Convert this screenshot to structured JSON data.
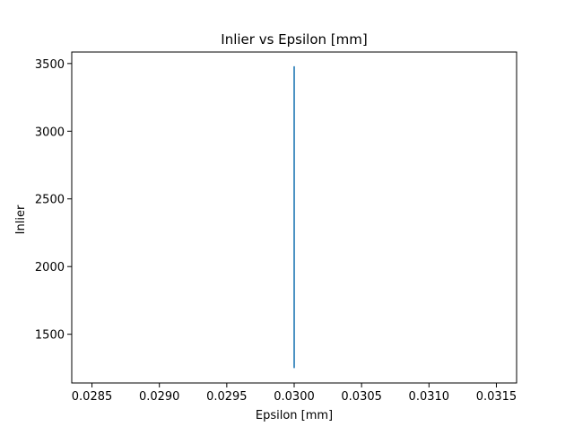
{
  "chart_data": {
    "type": "line",
    "title": "Inlier vs Epsilon [mm]",
    "xlabel": "Epsilon [mm]",
    "ylabel": "Inlier",
    "xlim": [
      0.02835,
      0.03165
    ],
    "ylim": [
      1140,
      3585
    ],
    "x_ticks": [
      0.0285,
      0.029,
      0.0295,
      0.03,
      0.0305,
      0.031,
      0.0315
    ],
    "x_tick_labels": [
      "0.0285",
      "0.0290",
      "0.0295",
      "0.0300",
      "0.0305",
      "0.0310",
      "0.0315"
    ],
    "y_ticks": [
      1500,
      2000,
      2500,
      3000,
      3500
    ],
    "y_tick_labels": [
      "1500",
      "2000",
      "2500",
      "3000",
      "3500"
    ],
    "grid": false,
    "legend": "none",
    "series": [
      {
        "color": "#1f77b4",
        "x": [
          0.03,
          0.03
        ],
        "y": [
          1250,
          3480
        ]
      }
    ]
  }
}
